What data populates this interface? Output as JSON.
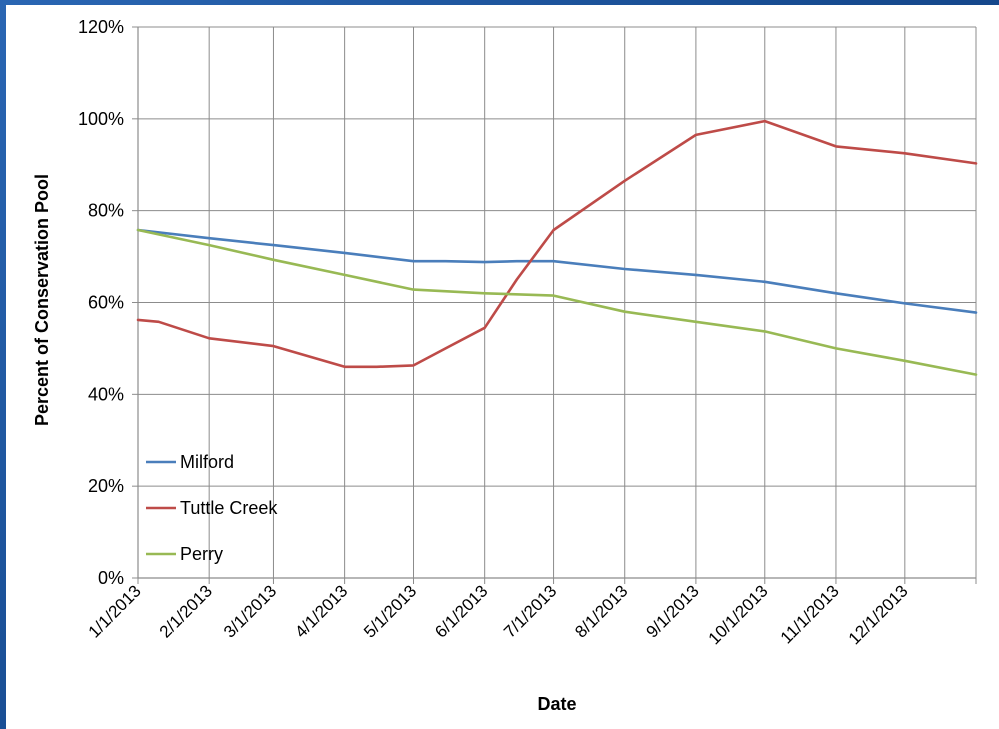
{
  "chart_data": {
    "type": "line",
    "xlabel": "Date",
    "ylabel": "Percent of Conservation Pool",
    "ylim": [
      0,
      120
    ],
    "y_ticks": [
      "0%",
      "20%",
      "40%",
      "60%",
      "80%",
      "100%",
      "120%"
    ],
    "y_tick_values": [
      0,
      20,
      40,
      60,
      80,
      100,
      120
    ],
    "categories": [
      "1/1/2013",
      "2/1/2013",
      "3/1/2013",
      "4/1/2013",
      "5/1/2013",
      "6/1/2013",
      "7/1/2013",
      "8/1/2013",
      "9/1/2013",
      "10/1/2013",
      "11/1/2013",
      "12/1/2013"
    ],
    "x_start": "2013-01-01",
    "x_end": "2014-01-01",
    "grid": true,
    "legend_position": "lower-left",
    "series": [
      {
        "name": "Milford",
        "color": "#4a7ebb",
        "points": [
          [
            "2013-01-01",
            75.8
          ],
          [
            "2013-02-01",
            74.0
          ],
          [
            "2013-03-01",
            72.5
          ],
          [
            "2013-04-01",
            70.8
          ],
          [
            "2013-05-01",
            69.0
          ],
          [
            "2013-05-15",
            69.0
          ],
          [
            "2013-06-01",
            68.8
          ],
          [
            "2013-06-15",
            69.0
          ],
          [
            "2013-07-01",
            69.0
          ],
          [
            "2013-08-01",
            67.3
          ],
          [
            "2013-09-01",
            66.0
          ],
          [
            "2013-10-01",
            64.5
          ],
          [
            "2013-11-01",
            62.0
          ],
          [
            "2013-12-01",
            59.8
          ],
          [
            "2014-01-01",
            57.8
          ]
        ]
      },
      {
        "name": "Tuttle Creek",
        "color": "#be4b48",
        "points": [
          [
            "2013-01-01",
            56.2
          ],
          [
            "2013-01-10",
            55.8
          ],
          [
            "2013-02-01",
            52.2
          ],
          [
            "2013-03-01",
            50.5
          ],
          [
            "2013-04-01",
            46.0
          ],
          [
            "2013-04-15",
            46.0
          ],
          [
            "2013-05-01",
            46.3
          ],
          [
            "2013-05-15",
            50.0
          ],
          [
            "2013-06-01",
            54.5
          ],
          [
            "2013-06-15",
            65.0
          ],
          [
            "2013-07-01",
            75.8
          ],
          [
            "2013-08-01",
            86.5
          ],
          [
            "2013-09-01",
            96.5
          ],
          [
            "2013-10-01",
            99.5
          ],
          [
            "2013-11-01",
            94.0
          ],
          [
            "2013-12-01",
            92.5
          ],
          [
            "2014-01-01",
            90.3
          ]
        ]
      },
      {
        "name": "Perry",
        "color": "#98b954",
        "points": [
          [
            "2013-01-01",
            75.8
          ],
          [
            "2013-02-01",
            72.5
          ],
          [
            "2013-03-01",
            69.3
          ],
          [
            "2013-04-01",
            66.0
          ],
          [
            "2013-05-01",
            62.8
          ],
          [
            "2013-06-01",
            62.0
          ],
          [
            "2013-07-01",
            61.5
          ],
          [
            "2013-08-01",
            58.0
          ],
          [
            "2013-09-01",
            55.8
          ],
          [
            "2013-10-01",
            53.7
          ],
          [
            "2013-11-01",
            50.0
          ],
          [
            "2013-12-01",
            47.3
          ],
          [
            "2014-01-01",
            44.3
          ]
        ]
      }
    ]
  }
}
